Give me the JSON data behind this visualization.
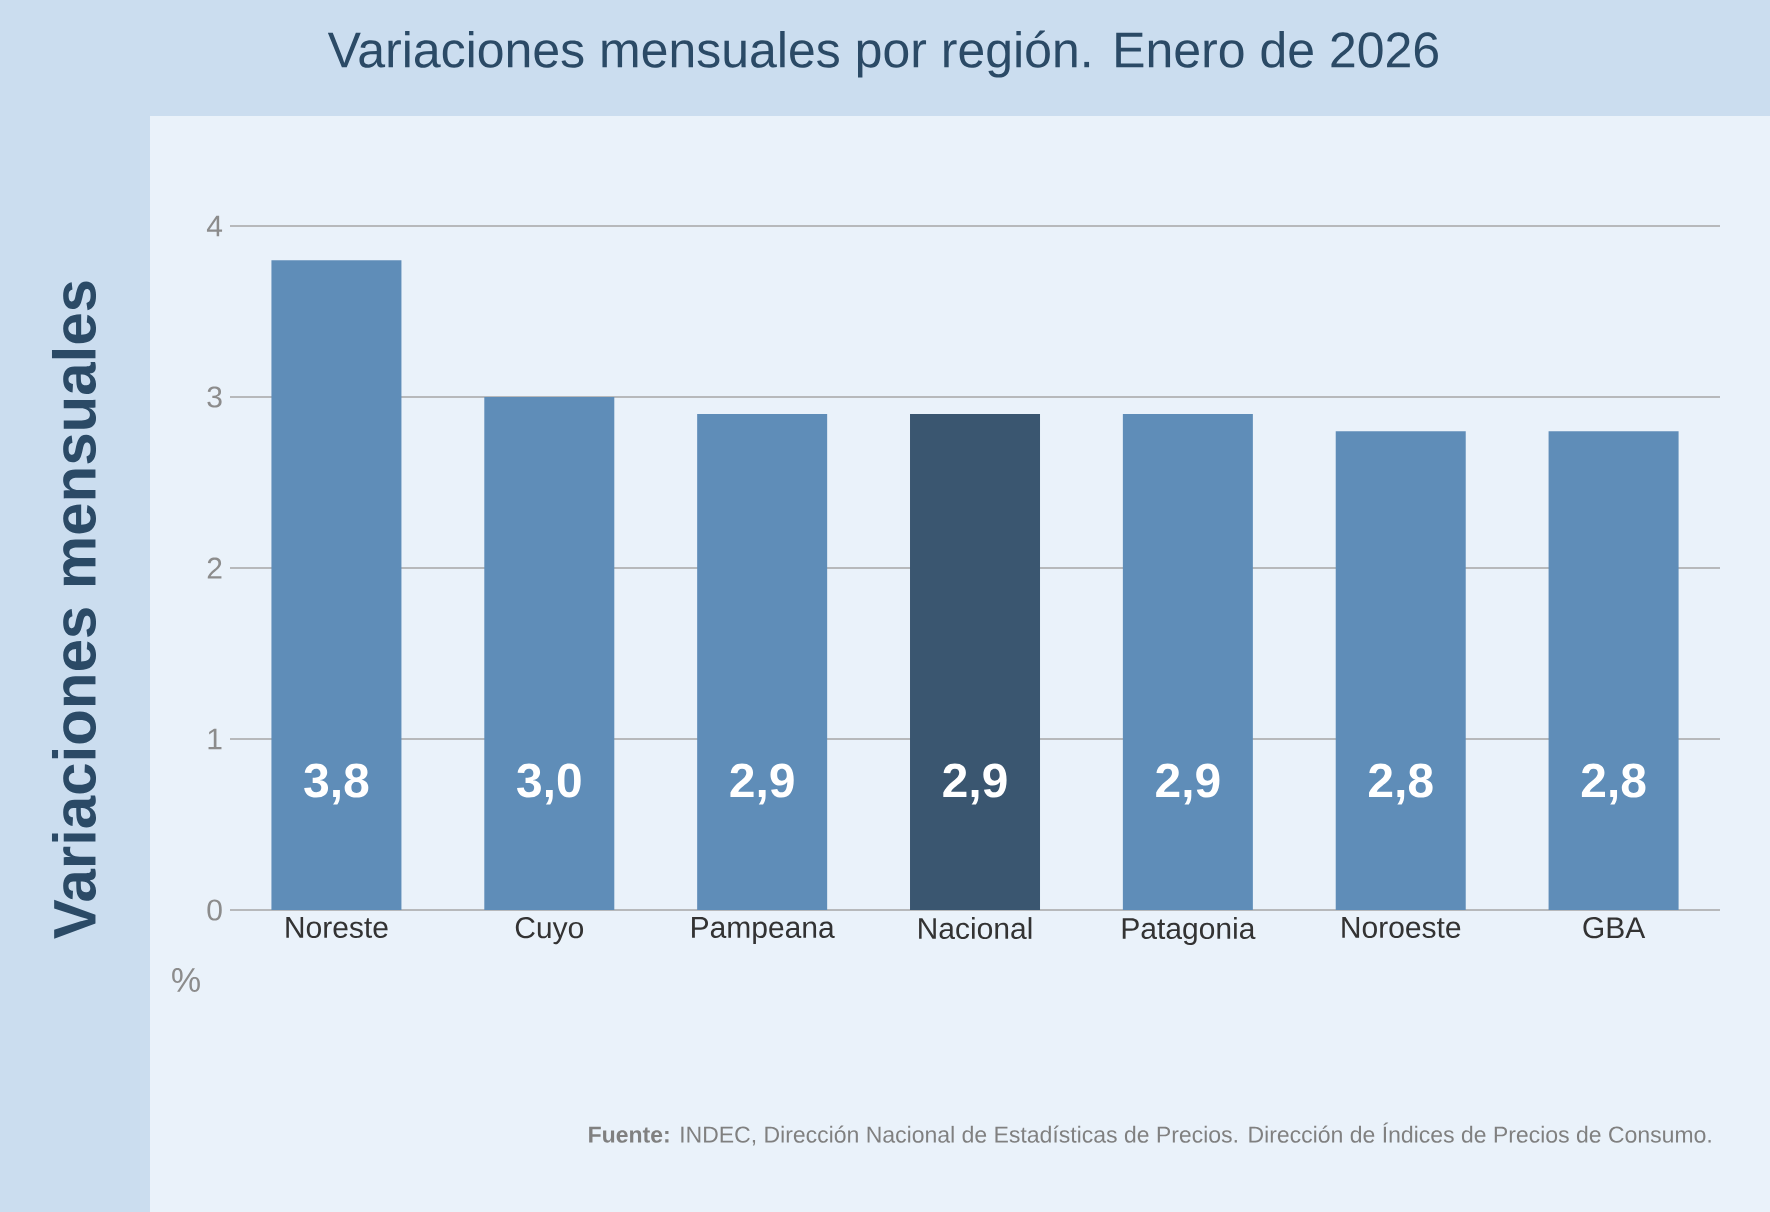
{
  "chart_data": {
    "type": "bar",
    "title": "Variaciones mensuales por región. Enero de 2026",
    "ylabel": "Variaciones mensuales",
    "categories": [
      "Noreste",
      "Cuyo",
      "Pampeana",
      "Nacional",
      "Patagonia",
      "Noroeste",
      "GBA"
    ],
    "values": [
      3.8,
      3.0,
      2.9,
      2.9,
      2.9,
      2.8,
      2.8
    ],
    "value_labels": [
      "3,8",
      "3,0",
      "2,9",
      "2,9",
      "2,9",
      "2,8",
      "2,8"
    ],
    "colors": [
      "#5f8db8",
      "#5f8db8",
      "#5f8db8",
      "#3a5670",
      "#5f8db8",
      "#5f8db8",
      "#5f8db8"
    ],
    "ylim": [
      0,
      4
    ],
    "yticks": [
      0,
      1,
      2,
      3,
      4
    ],
    "grid": "y",
    "annotations": [
      "%",
      "**Fuente:** INDEC, Dirección Nacional de Estadísticas de Precios. Dirección de Índices de Precios de Consumo."
    ]
  }
}
